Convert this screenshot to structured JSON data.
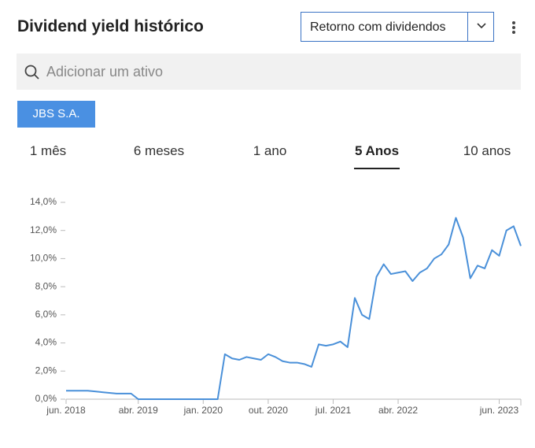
{
  "header": {
    "title": "Dividend yield histórico",
    "dropdown": "Retorno com dividendos"
  },
  "search": {
    "placeholder": "Adicionar um ativo"
  },
  "asset_chip": "JBS S.A.",
  "tabs": [
    "1 mês",
    "6 meses",
    "1 ano",
    "5 Anos",
    "10 anos"
  ],
  "chart_data": {
    "type": "line",
    "x": [
      "2018-06",
      "2018-07",
      "2018-08",
      "2018-09",
      "2018-10",
      "2018-11",
      "2018-12",
      "2019-01",
      "2019-02",
      "2019-03",
      "2019-04",
      "2019-05",
      "2019-06",
      "2019-07",
      "2019-08",
      "2019-09",
      "2019-10",
      "2019-11",
      "2019-12",
      "2020-01",
      "2020-02",
      "2020-03",
      "2020-04",
      "2020-05",
      "2020-06",
      "2020-07",
      "2020-08",
      "2020-09",
      "2020-10",
      "2020-11",
      "2020-12",
      "2021-01",
      "2021-02",
      "2021-03",
      "2021-04",
      "2021-05",
      "2021-06",
      "2021-07",
      "2021-08",
      "2021-09",
      "2021-10",
      "2021-11",
      "2021-12",
      "2022-01",
      "2022-02",
      "2022-03",
      "2022-04",
      "2022-05",
      "2022-06",
      "2022-07",
      "2022-08",
      "2022-09",
      "2022-10",
      "2022-11",
      "2022-12",
      "2023-01",
      "2023-02",
      "2023-03",
      "2023-04",
      "2023-05",
      "2023-06",
      "2023-07",
      "2023-08",
      "2023-09"
    ],
    "series": [
      {
        "color": "#4a90d9",
        "values": [
          0.6,
          0.6,
          0.6,
          0.6,
          0.55,
          0.5,
          0.45,
          0.4,
          0.4,
          0.4,
          0,
          0,
          0,
          0,
          0,
          0,
          0,
          0,
          0,
          0,
          0,
          0,
          3.2,
          2.9,
          2.8,
          3.0,
          2.9,
          2.8,
          3.2,
          3.0,
          2.7,
          2.6,
          2.6,
          2.5,
          2.3,
          3.9,
          3.8,
          3.9,
          4.1,
          3.7,
          7.2,
          6.0,
          5.7,
          8.7,
          9.6,
          8.9,
          9.0,
          9.1,
          8.4,
          9.0,
          9.3,
          10.0,
          10.3,
          11.0,
          12.9,
          11.5,
          8.6,
          9.5,
          9.3,
          10.6,
          10.2,
          12.0,
          12.3,
          10.9
        ]
      }
    ],
    "xlim": [
      "2018-06",
      "2023-09"
    ],
    "xticks": [
      {
        "value": "2018-06",
        "label": "jun. 2018"
      },
      {
        "value": "2019-04",
        "label": "abr. 2019"
      },
      {
        "value": "2020-01",
        "label": "jan. 2020"
      },
      {
        "value": "2020-10",
        "label": "out. 2020"
      },
      {
        "value": "2021-07",
        "label": "jul. 2021"
      },
      {
        "value": "2022-04",
        "label": "abr. 2022"
      },
      {
        "value": "2023-06",
        "label": "jun. 2023"
      }
    ],
    "ylim": [
      0,
      14
    ],
    "yticks": [
      {
        "value": 0,
        "label": "0,0%"
      },
      {
        "value": 2,
        "label": "2,0%"
      },
      {
        "value": 4,
        "label": "4,0%"
      },
      {
        "value": 6,
        "label": "6,0%"
      },
      {
        "value": 8,
        "label": "8,0%"
      },
      {
        "value": 10,
        "label": "10,0%"
      },
      {
        "value": 12,
        "label": "12,0%"
      },
      {
        "value": 14,
        "label": "14,0%"
      }
    ]
  }
}
